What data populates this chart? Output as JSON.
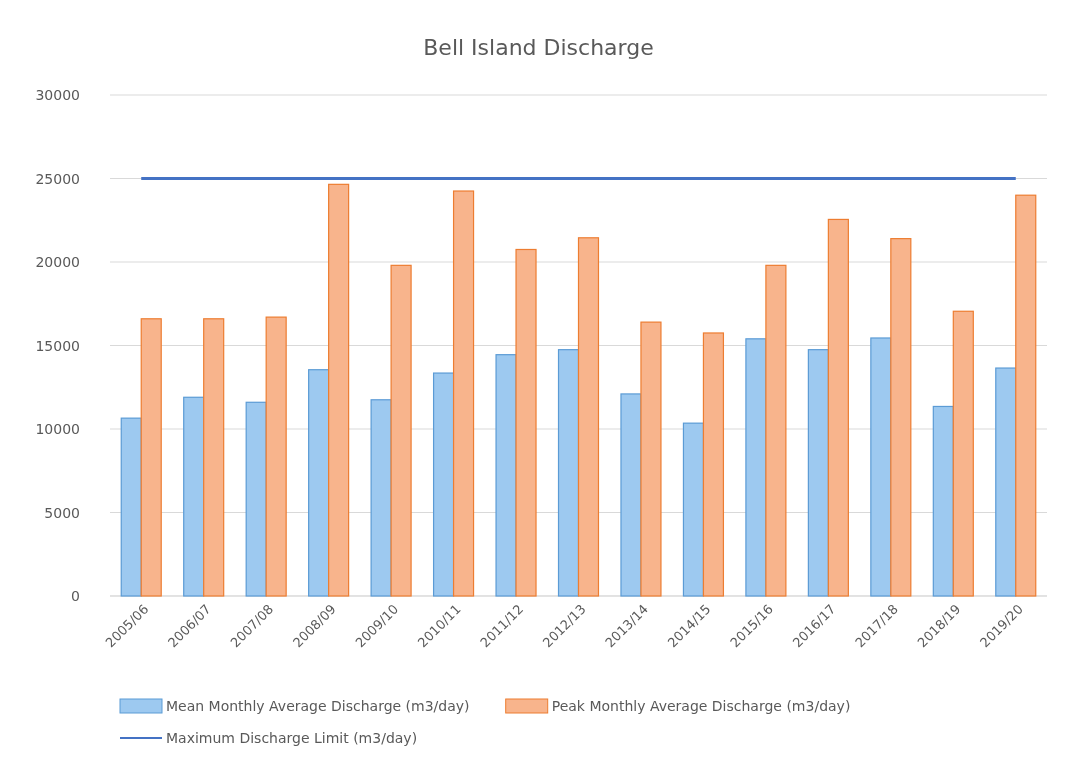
{
  "chart_data": {
    "type": "bar",
    "title": "Bell Island Discharge",
    "categories": [
      "2005/06",
      "2006/07",
      "2007/08",
      "2008/09",
      "2009/10",
      "2010/11",
      "2011/12",
      "2012/13",
      "2013/14",
      "2014/15",
      "2015/16",
      "2016/17",
      "2017/18",
      "2018/19",
      "2019/20"
    ],
    "series": [
      {
        "name": "Mean Monthly Average Discharge (m3/day)",
        "color": "#9dc9f0",
        "values": [
          10650,
          11900,
          11600,
          13550,
          11750,
          13350,
          14450,
          14750,
          12100,
          10350,
          15400,
          14750,
          15450,
          11350,
          13650
        ]
      },
      {
        "name": "Peak Monthly Average Discharge (m3/day)",
        "color": "#f8b48c",
        "values": [
          16600,
          16600,
          16700,
          24650,
          19800,
          24250,
          20750,
          21450,
          16400,
          15750,
          19800,
          22550,
          21400,
          17050,
          24000
        ]
      },
      {
        "name": "Maximum Discharge Limit (m3/day)",
        "type": "line",
        "color": "#4472c4",
        "values": [
          25000,
          25000,
          25000,
          25000,
          25000,
          25000,
          25000,
          25000,
          25000,
          25000,
          25000,
          25000,
          25000,
          25000,
          25000
        ]
      }
    ],
    "ylim": [
      0,
      30000
    ],
    "yticks": [
      0,
      5000,
      10000,
      15000,
      20000,
      25000,
      30000
    ],
    "grid": "y",
    "legend": "bottom",
    "marker": "none"
  }
}
